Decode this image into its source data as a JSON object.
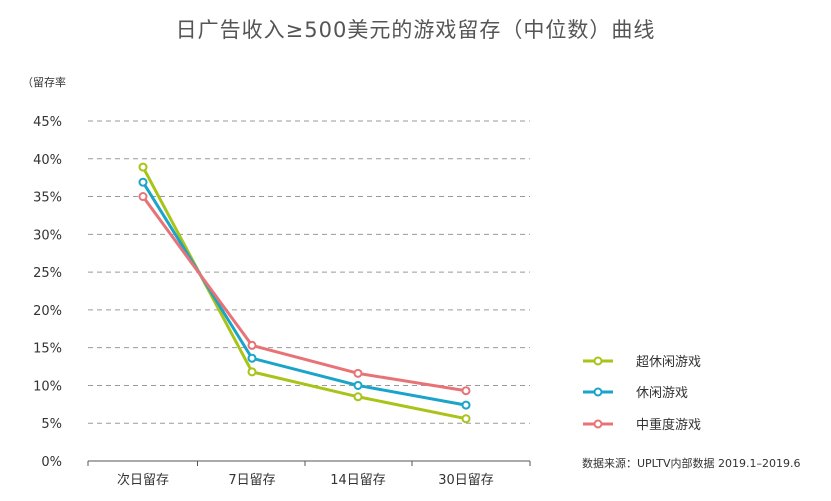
{
  "chart_data": {
    "type": "line",
    "title": "日广告收入≥500美元的游戏留存（中位数）曲线",
    "ylabel": "（留存率",
    "source": "数据来源：UPLTV内部数据 2019.1–2019.6",
    "categories": [
      "次日留存",
      "7日留存",
      "14日留存",
      "30日留存"
    ],
    "yticks": [
      "0%",
      "5%",
      "10%",
      "15%",
      "20%",
      "25%",
      "30%",
      "35%",
      "40%",
      "45%"
    ],
    "ylim": [
      0,
      45
    ],
    "grid": true,
    "legend_position": "right",
    "series": [
      {
        "name": "超休闲游戏",
        "color": "#a9c319",
        "values": [
          38.9,
          11.8,
          8.5,
          5.6
        ]
      },
      {
        "name": "休闲游戏",
        "color": "#1aa4c9",
        "values": [
          36.9,
          13.6,
          10.0,
          7.4
        ]
      },
      {
        "name": "中重度游戏",
        "color": "#e87377",
        "values": [
          35.0,
          15.3,
          11.6,
          9.3
        ]
      }
    ]
  }
}
